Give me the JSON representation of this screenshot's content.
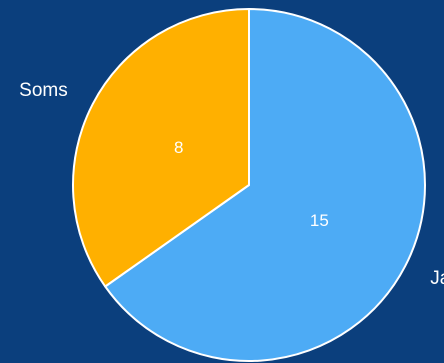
{
  "chart_data": {
    "type": "pie",
    "categories": [
      "Ja",
      "Soms"
    ],
    "values": [
      15,
      8
    ],
    "colors": [
      "#4dabf5",
      "#ffb000"
    ],
    "background": "#0b3f7d",
    "slice_border_color": "#ffffff",
    "title": "",
    "legend": "none",
    "labels": [
      "Ja",
      "Soms"
    ],
    "value_labels": [
      "15",
      "8"
    ]
  }
}
